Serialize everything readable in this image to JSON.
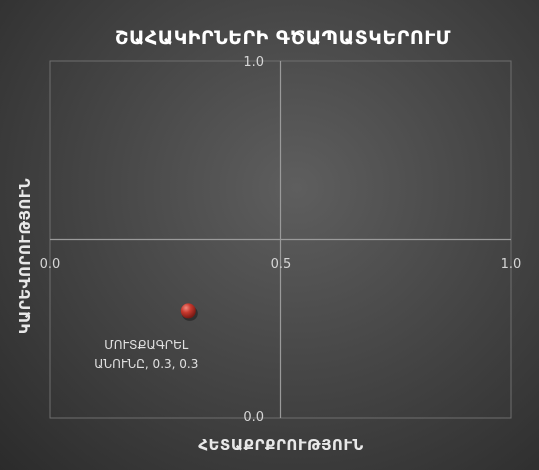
{
  "chart_data": {
    "type": "scatter",
    "title": "ՇԱՀԱԿԻՐՆԵՐԻ ԳԾԱՊԱՏԿԵՐՈՒՄ",
    "xlabel": "ՀԵՏԱՔՐՔՐՈՒԹՅՈՒՆ",
    "ylabel": "ԿԱՐԵՎՈՐՈՒԹՅՈՒՆ",
    "xlim": [
      0,
      1
    ],
    "ylim": [
      0,
      1
    ],
    "x_ticks": [
      "0.0",
      "0.5",
      "1.0"
    ],
    "y_ticks": [
      "0.0",
      "1.0"
    ],
    "grid": false,
    "points": [
      {
        "x": 0.3,
        "y": 0.3,
        "label_line1": "ՄՈՒՏՔԱԳՐԵԼ",
        "label_line2": "ԱՆՈՒՆԸ, 0.3, 0.3"
      }
    ],
    "colors": {
      "marker": "#c8392e",
      "background": "#474747"
    }
  }
}
